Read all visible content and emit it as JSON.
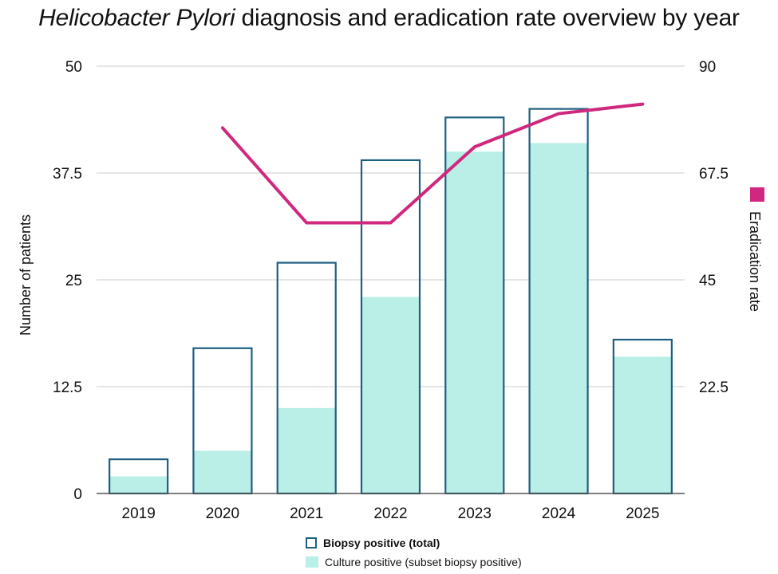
{
  "chart_data": {
    "type": "bar",
    "title_italic": "Helicobacter Pylori",
    "title_rest": " diagnosis and eradication rate overview by year",
    "categories": [
      "2019",
      "2020",
      "2021",
      "2022",
      "2023",
      "2024",
      "2025"
    ],
    "series": [
      {
        "name": "Biopsy positive (total)",
        "type": "bar-outline",
        "axis": "left",
        "values": [
          4,
          17,
          27,
          39,
          44,
          45,
          18
        ]
      },
      {
        "name": "Culture positive (subset biopsy positive)",
        "type": "bar-fill",
        "axis": "left",
        "values": [
          2,
          5,
          10,
          23,
          40,
          41,
          16
        ]
      },
      {
        "name": "Eradication rate",
        "type": "line",
        "axis": "right",
        "values": [
          null,
          77,
          57,
          57,
          73,
          80,
          82
        ]
      }
    ],
    "left_axis": {
      "label": "Number of patients",
      "ylim": [
        0,
        50
      ],
      "ticks": [
        "0",
        "12.5",
        "25",
        "37.5",
        "50"
      ],
      "tick_values": [
        0,
        12.5,
        25,
        37.5,
        50
      ]
    },
    "right_axis": {
      "label": "Eradication rate",
      "ylim": [
        0,
        90
      ],
      "ticks": [
        "22.5",
        "45",
        "67.5",
        "90"
      ],
      "tick_values": [
        22.5,
        45,
        67.5,
        90
      ]
    },
    "grid": true,
    "colors": {
      "biopsy": "#1e5f80",
      "culture": "#b9efe6",
      "eradication": "#d0287e",
      "grid": "#cccccc",
      "axis": "#555555"
    }
  },
  "legend": {
    "biopsy_label": "Biopsy positive (total)",
    "culture_label": "Culture positive (subset biopsy positive)"
  }
}
